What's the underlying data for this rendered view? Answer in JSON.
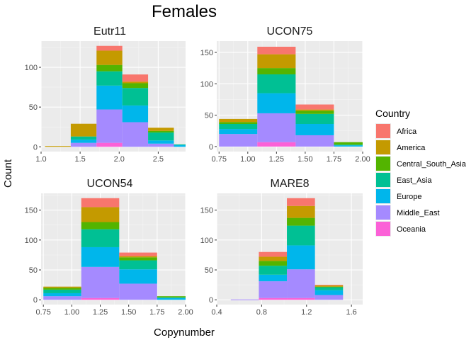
{
  "chart_data": {
    "type": "bar",
    "stacked": true,
    "title": "Females",
    "xlabel": "Copynumber",
    "ylabel": "Count",
    "legend": {
      "title": "Country",
      "placement": "right",
      "entries": [
        {
          "name": "Africa",
          "color": "#F8766D"
        },
        {
          "name": "America",
          "color": "#C49A00"
        },
        {
          "name": "Central_South_Asia",
          "color": "#53B400"
        },
        {
          "name": "East_Asia",
          "color": "#00C094"
        },
        {
          "name": "Europe",
          "color": "#00B6EB"
        },
        {
          "name": "Middle_East",
          "color": "#A58AFF"
        },
        {
          "name": "Oceania",
          "color": "#FB61D7"
        }
      ]
    },
    "stack_order": [
      "Oceania",
      "Middle_East",
      "Europe",
      "East_Asia",
      "Central_South_Asia",
      "America",
      "Africa"
    ],
    "panels": [
      {
        "name": "Eutr11",
        "xlim": [
          1.0,
          2.85
        ],
        "ylim": [
          -6,
          133
        ],
        "xticks": [
          "1.0",
          "1.5",
          "2.0",
          "2.5"
        ],
        "xtick_values": [
          1.0,
          1.5,
          2.0,
          2.5
        ],
        "yticks": [
          0,
          50,
          100
        ],
        "bins": [
          {
            "x0": 1.05,
            "x1": 1.38,
            "counts": {
              "Oceania": 0,
              "Middle_East": 0,
              "Europe": 0,
              "East_Asia": 0,
              "Central_South_Asia": 0,
              "America": 1,
              "Africa": 0
            }
          },
          {
            "x0": 1.38,
            "x1": 1.71,
            "counts": {
              "Oceania": 0,
              "Middle_East": 5,
              "Europe": 4,
              "East_Asia": 4,
              "Central_South_Asia": 0,
              "America": 16,
              "Africa": 0
            }
          },
          {
            "x0": 1.71,
            "x1": 2.04,
            "counts": {
              "Oceania": 5,
              "Middle_East": 42,
              "Europe": 30,
              "East_Asia": 18,
              "Central_South_Asia": 8,
              "America": 18,
              "Africa": 6
            }
          },
          {
            "x0": 2.04,
            "x1": 2.37,
            "counts": {
              "Oceania": 0,
              "Middle_East": 31,
              "Europe": 21,
              "East_Asia": 22,
              "Central_South_Asia": 6,
              "America": 2,
              "Africa": 9
            }
          },
          {
            "x0": 2.37,
            "x1": 2.7,
            "counts": {
              "Oceania": 0,
              "Middle_East": 4,
              "Europe": 4,
              "East_Asia": 10,
              "Central_South_Asia": 2,
              "America": 4,
              "Africa": 0
            }
          },
          {
            "x0": 2.7,
            "x1": 3.03,
            "counts": {
              "Oceania": 0,
              "Middle_East": 0,
              "Europe": 2,
              "East_Asia": 1,
              "Central_South_Asia": 0,
              "America": 0,
              "Africa": 0
            }
          }
        ]
      },
      {
        "name": "UCON75",
        "xlim": [
          0.73,
          2.0
        ],
        "ylim": [
          -8,
          168
        ],
        "xticks": [
          "0.75",
          "1.00",
          "1.25",
          "1.50",
          "1.75",
          "2.00"
        ],
        "xtick_values": [
          0.75,
          1.0,
          1.25,
          1.5,
          1.75,
          2.0
        ],
        "yticks": [
          0,
          50,
          100,
          150
        ],
        "bins": [
          {
            "x0": 0.75,
            "x1": 1.0833,
            "counts": {
              "Oceania": 0,
              "Middle_East": 20,
              "Europe": 8,
              "East_Asia": 8,
              "Central_South_Asia": 3,
              "America": 5,
              "Africa": 0
            }
          },
          {
            "x0": 1.0833,
            "x1": 1.4167,
            "counts": {
              "Oceania": 7,
              "Middle_East": 46,
              "Europe": 32,
              "East_Asia": 30,
              "Central_South_Asia": 10,
              "America": 22,
              "Africa": 12
            }
          },
          {
            "x0": 1.4167,
            "x1": 1.75,
            "counts": {
              "Oceania": 0,
              "Middle_East": 18,
              "Europe": 18,
              "East_Asia": 16,
              "Central_South_Asia": 5,
              "America": 2,
              "Africa": 8
            }
          },
          {
            "x0": 1.75,
            "x1": 2.0833,
            "counts": {
              "Oceania": 0,
              "Middle_East": 0,
              "Europe": 2,
              "East_Asia": 1,
              "Central_South_Asia": 4,
              "America": 0,
              "Africa": 0
            }
          }
        ]
      },
      {
        "name": "UCON54",
        "xlim": [
          0.73,
          2.0
        ],
        "ylim": [
          -8,
          178
        ],
        "xticks": [
          "0.75",
          "1.00",
          "1.25",
          "1.50",
          "1.75",
          "2.00"
        ],
        "xtick_values": [
          0.75,
          1.0,
          1.25,
          1.5,
          1.75,
          2.0
        ],
        "yticks": [
          0,
          50,
          100,
          150
        ],
        "bins": [
          {
            "x0": 0.75,
            "x1": 1.0833,
            "counts": {
              "Oceania": 0,
              "Middle_East": 6,
              "Europe": 5,
              "East_Asia": 6,
              "Central_South_Asia": 3,
              "America": 2,
              "Africa": 0
            }
          },
          {
            "x0": 1.0833,
            "x1": 1.4167,
            "counts": {
              "Oceania": 3,
              "Middle_East": 52,
              "Europe": 33,
              "East_Asia": 30,
              "Central_South_Asia": 12,
              "America": 25,
              "Africa": 15
            }
          },
          {
            "x0": 1.4167,
            "x1": 1.75,
            "counts": {
              "Oceania": 0,
              "Middle_East": 27,
              "Europe": 24,
              "East_Asia": 15,
              "Central_South_Asia": 5,
              "America": 2,
              "Africa": 6
            }
          },
          {
            "x0": 1.75,
            "x1": 2.0833,
            "counts": {
              "Oceania": 0,
              "Middle_East": 0,
              "Europe": 3,
              "East_Asia": 1,
              "Central_South_Asia": 2,
              "America": 0,
              "Africa": 0
            }
          }
        ]
      },
      {
        "name": "MARE8",
        "xlim": [
          0.4,
          1.7
        ],
        "ylim": [
          -8,
          178
        ],
        "xticks": [
          "0.4",
          "0.8",
          "1.2",
          "1.6"
        ],
        "xtick_values": [
          0.4,
          0.8,
          1.2,
          1.6
        ],
        "yticks": [
          0,
          50,
          100,
          150
        ],
        "bins": [
          {
            "x0": 0.525,
            "x1": 0.775,
            "counts": {
              "Oceania": 0,
              "Middle_East": 0,
              "Europe": 0,
              "East_Asia": 0,
              "Central_South_Asia": 0,
              "America": 0,
              "Africa": 0
            }
          },
          {
            "x0": 0.775,
            "x1": 1.025,
            "counts": {
              "Oceania": 3,
              "Middle_East": 28,
              "Europe": 11,
              "East_Asia": 15,
              "Central_South_Asia": 8,
              "America": 7,
              "Africa": 8
            }
          },
          {
            "x0": 1.025,
            "x1": 1.275,
            "counts": {
              "Oceania": 3,
              "Middle_East": 48,
              "Europe": 40,
              "East_Asia": 33,
              "Central_South_Asia": 13,
              "America": 20,
              "Africa": 13
            }
          },
          {
            "x0": 1.275,
            "x1": 1.525,
            "counts": {
              "Oceania": 0,
              "Middle_East": 8,
              "Europe": 8,
              "East_Asia": 5,
              "Central_South_Asia": 1,
              "America": 2,
              "Africa": 1
            }
          }
        ]
      }
    ]
  }
}
